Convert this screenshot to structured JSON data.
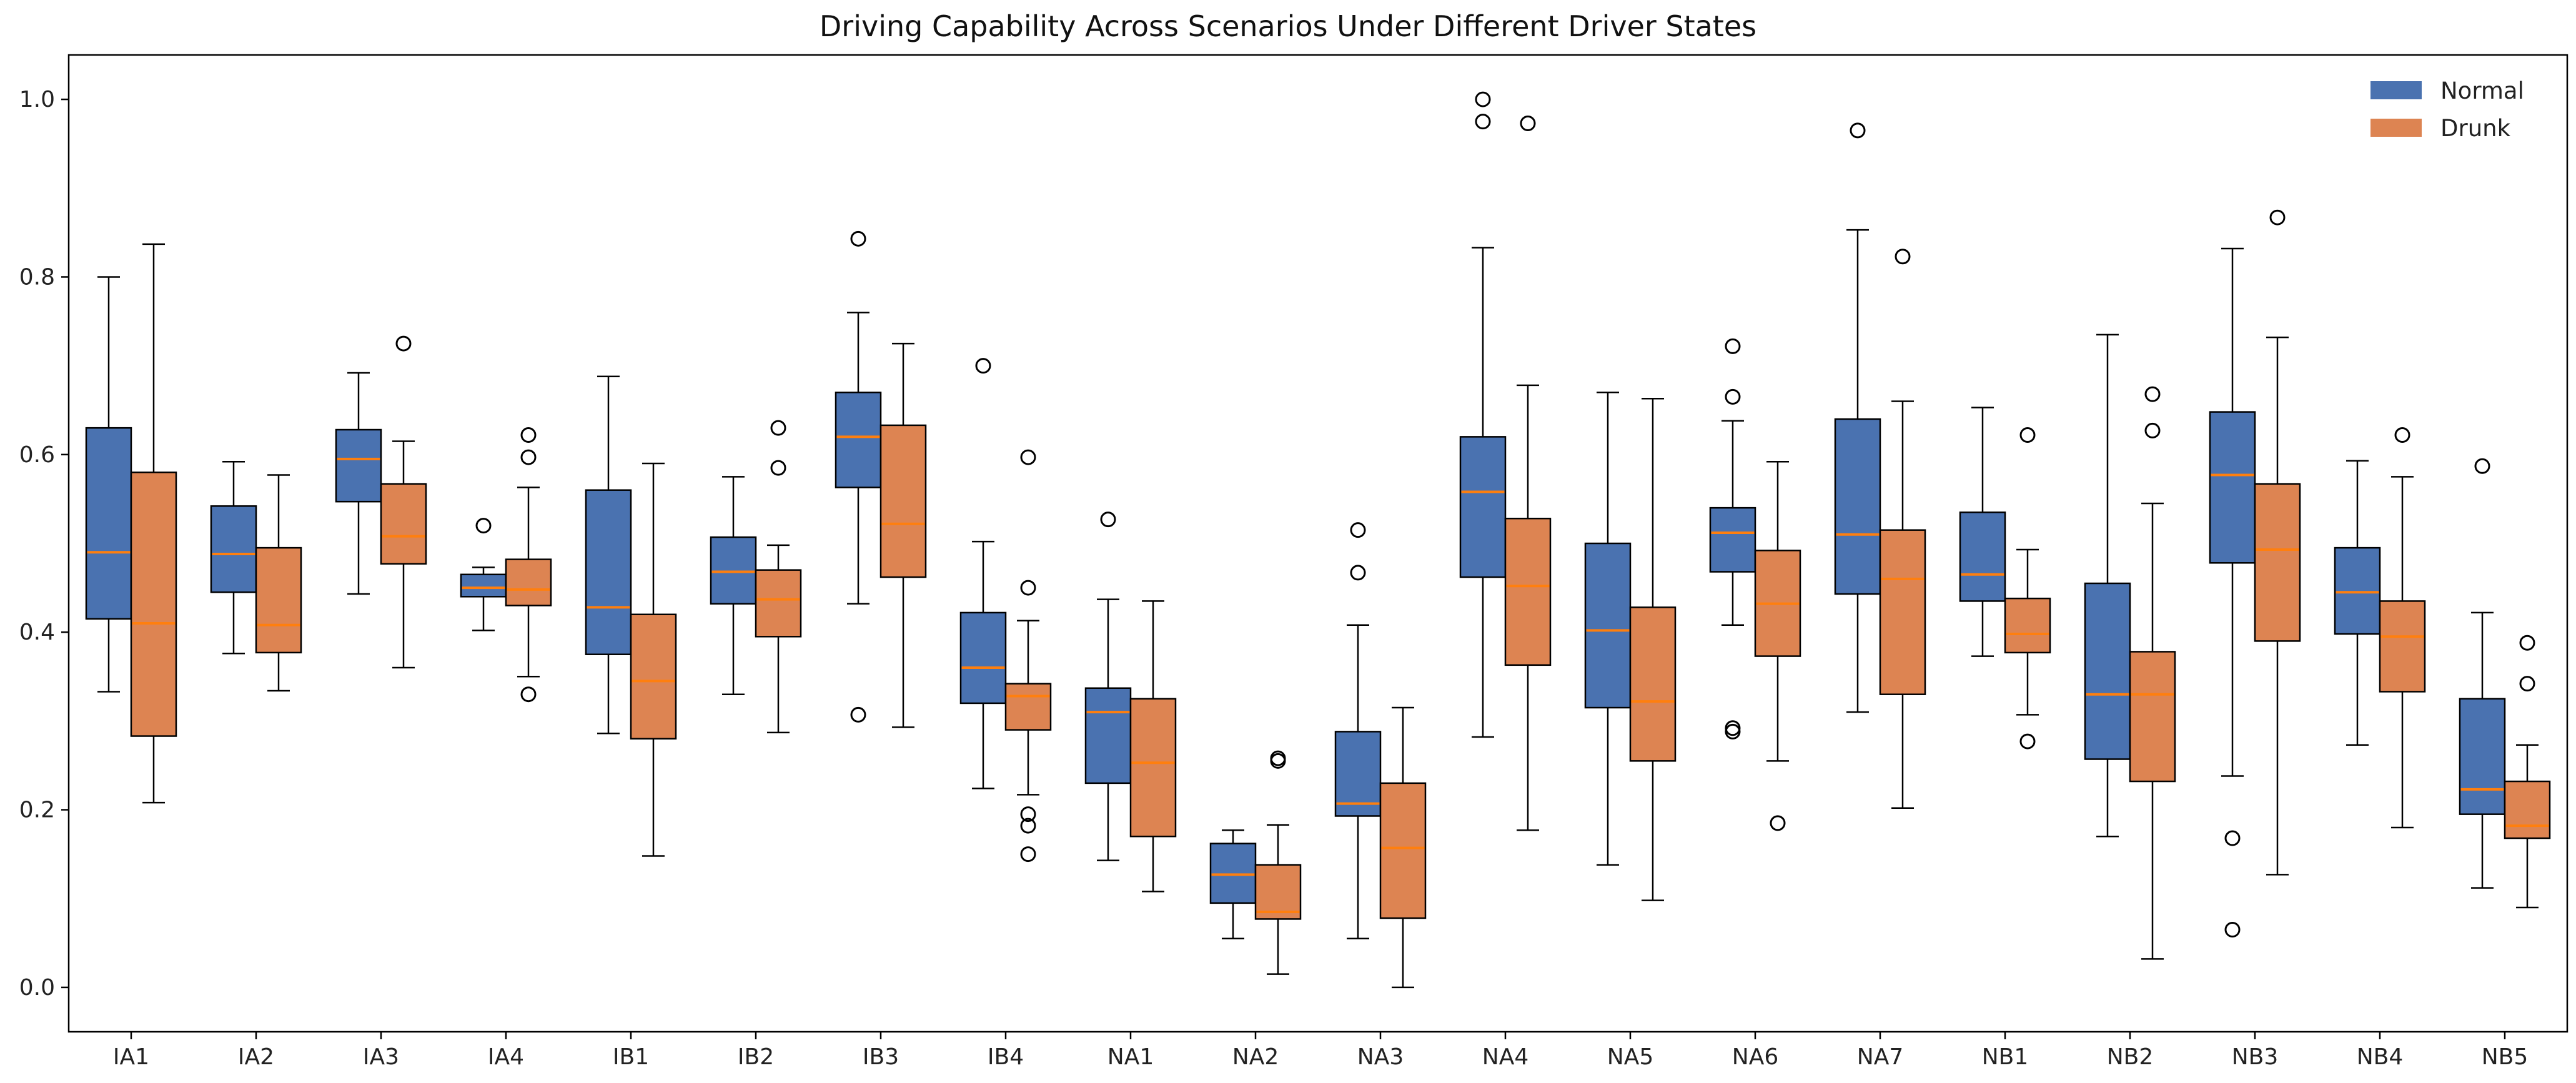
{
  "chart_data": {
    "type": "boxplot",
    "title": "Driving Capability Across Scenarios Under Different Driver States",
    "xlabel": "",
    "ylabel": "",
    "ylim": [
      -0.05,
      1.05
    ],
    "yticks": [
      0.0,
      0.2,
      0.4,
      0.6,
      0.8,
      1.0
    ],
    "ytick_labels": [
      "0.0",
      "0.2",
      "0.4",
      "0.6",
      "0.8",
      "1.0"
    ],
    "grid": false,
    "legend_position": "top-right",
    "categories": [
      "IA1",
      "IA2",
      "IA3",
      "IA4",
      "IB1",
      "IB2",
      "IB3",
      "IB4",
      "NA1",
      "NA2",
      "NA3",
      "NA4",
      "NA5",
      "NA6",
      "NA7",
      "NB1",
      "NB2",
      "NB3",
      "NB4",
      "NB5"
    ],
    "series": [
      {
        "name": "Normal",
        "color": "#4a72b0",
        "boxes": [
          {
            "whislo": 0.333,
            "q1": 0.415,
            "med": 0.49,
            "q3": 0.63,
            "whishi": 0.8,
            "fliers": []
          },
          {
            "whislo": 0.376,
            "q1": 0.445,
            "med": 0.488,
            "q3": 0.542,
            "whishi": 0.592,
            "fliers": []
          },
          {
            "whislo": 0.443,
            "q1": 0.547,
            "med": 0.595,
            "q3": 0.628,
            "whishi": 0.692,
            "fliers": []
          },
          {
            "whislo": 0.402,
            "q1": 0.44,
            "med": 0.45,
            "q3": 0.465,
            "whishi": 0.473,
            "fliers": [
              0.52
            ]
          },
          {
            "whislo": 0.286,
            "q1": 0.375,
            "med": 0.428,
            "q3": 0.56,
            "whishi": 0.688,
            "fliers": []
          },
          {
            "whislo": 0.33,
            "q1": 0.432,
            "med": 0.468,
            "q3": 0.507,
            "whishi": 0.575,
            "fliers": []
          },
          {
            "whislo": 0.432,
            "q1": 0.563,
            "med": 0.62,
            "q3": 0.67,
            "whishi": 0.76,
            "fliers": [
              0.843,
              0.307
            ]
          },
          {
            "whislo": 0.224,
            "q1": 0.32,
            "med": 0.36,
            "q3": 0.422,
            "whishi": 0.502,
            "fliers": [
              0.7
            ]
          },
          {
            "whislo": 0.143,
            "q1": 0.23,
            "med": 0.31,
            "q3": 0.337,
            "whishi": 0.437,
            "fliers": [
              0.527
            ]
          },
          {
            "whislo": 0.055,
            "q1": 0.095,
            "med": 0.127,
            "q3": 0.162,
            "whishi": 0.177,
            "fliers": []
          },
          {
            "whislo": 0.055,
            "q1": 0.193,
            "med": 0.207,
            "q3": 0.288,
            "whishi": 0.408,
            "fliers": [
              0.515,
              0.467
            ]
          },
          {
            "whislo": 0.282,
            "q1": 0.462,
            "med": 0.558,
            "q3": 0.62,
            "whishi": 0.833,
            "fliers": [
              1.0,
              0.975
            ]
          },
          {
            "whislo": 0.138,
            "q1": 0.315,
            "med": 0.402,
            "q3": 0.5,
            "whishi": 0.67,
            "fliers": []
          },
          {
            "whislo": 0.408,
            "q1": 0.468,
            "med": 0.512,
            "q3": 0.54,
            "whishi": 0.638,
            "fliers": [
              0.722,
              0.665,
              0.292,
              0.288
            ]
          },
          {
            "whislo": 0.31,
            "q1": 0.443,
            "med": 0.51,
            "q3": 0.64,
            "whishi": 0.853,
            "fliers": [
              0.965
            ]
          },
          {
            "whislo": 0.373,
            "q1": 0.435,
            "med": 0.465,
            "q3": 0.535,
            "whishi": 0.653,
            "fliers": []
          },
          {
            "whislo": 0.17,
            "q1": 0.257,
            "med": 0.33,
            "q3": 0.455,
            "whishi": 0.735,
            "fliers": []
          },
          {
            "whislo": 0.238,
            "q1": 0.478,
            "med": 0.577,
            "q3": 0.648,
            "whishi": 0.832,
            "fliers": [
              0.168,
              0.065
            ]
          },
          {
            "whislo": 0.273,
            "q1": 0.398,
            "med": 0.445,
            "q3": 0.495,
            "whishi": 0.593,
            "fliers": []
          },
          {
            "whislo": 0.112,
            "q1": 0.195,
            "med": 0.223,
            "q3": 0.325,
            "whishi": 0.422,
            "fliers": [
              0.587
            ]
          }
        ]
      },
      {
        "name": "Drunk",
        "color": "#dd8452",
        "boxes": [
          {
            "whislo": 0.208,
            "q1": 0.283,
            "med": 0.41,
            "q3": 0.58,
            "whishi": 0.837,
            "fliers": []
          },
          {
            "whislo": 0.334,
            "q1": 0.377,
            "med": 0.408,
            "q3": 0.495,
            "whishi": 0.577,
            "fliers": []
          },
          {
            "whislo": 0.36,
            "q1": 0.477,
            "med": 0.508,
            "q3": 0.567,
            "whishi": 0.615,
            "fliers": [
              0.725
            ]
          },
          {
            "whislo": 0.35,
            "q1": 0.43,
            "med": 0.448,
            "q3": 0.482,
            "whishi": 0.563,
            "fliers": [
              0.622,
              0.597,
              0.33
            ]
          },
          {
            "whislo": 0.148,
            "q1": 0.28,
            "med": 0.345,
            "q3": 0.42,
            "whishi": 0.59,
            "fliers": []
          },
          {
            "whislo": 0.287,
            "q1": 0.395,
            "med": 0.437,
            "q3": 0.47,
            "whishi": 0.498,
            "fliers": [
              0.63,
              0.585
            ]
          },
          {
            "whislo": 0.293,
            "q1": 0.462,
            "med": 0.522,
            "q3": 0.633,
            "whishi": 0.725,
            "fliers": []
          },
          {
            "whislo": 0.217,
            "q1": 0.29,
            "med": 0.328,
            "q3": 0.342,
            "whishi": 0.413,
            "fliers": [
              0.597,
              0.45,
              0.195,
              0.182,
              0.15
            ]
          },
          {
            "whislo": 0.108,
            "q1": 0.17,
            "med": 0.253,
            "q3": 0.325,
            "whishi": 0.435,
            "fliers": []
          },
          {
            "whislo": 0.015,
            "q1": 0.077,
            "med": 0.085,
            "q3": 0.138,
            "whishi": 0.183,
            "fliers": [
              0.258,
              0.255
            ]
          },
          {
            "whislo": 0.0,
            "q1": 0.078,
            "med": 0.157,
            "q3": 0.23,
            "whishi": 0.315,
            "fliers": []
          },
          {
            "whislo": 0.177,
            "q1": 0.363,
            "med": 0.452,
            "q3": 0.528,
            "whishi": 0.678,
            "fliers": [
              0.973
            ]
          },
          {
            "whislo": 0.098,
            "q1": 0.255,
            "med": 0.322,
            "q3": 0.428,
            "whishi": 0.663,
            "fliers": []
          },
          {
            "whislo": 0.255,
            "q1": 0.373,
            "med": 0.432,
            "q3": 0.492,
            "whishi": 0.592,
            "fliers": [
              0.185
            ]
          },
          {
            "whislo": 0.202,
            "q1": 0.33,
            "med": 0.46,
            "q3": 0.515,
            "whishi": 0.66,
            "fliers": [
              0.823
            ]
          },
          {
            "whislo": 0.307,
            "q1": 0.377,
            "med": 0.398,
            "q3": 0.438,
            "whishi": 0.493,
            "fliers": [
              0.622,
              0.277
            ]
          },
          {
            "whislo": 0.032,
            "q1": 0.232,
            "med": 0.33,
            "q3": 0.378,
            "whishi": 0.545,
            "fliers": [
              0.668,
              0.627
            ]
          },
          {
            "whislo": 0.127,
            "q1": 0.39,
            "med": 0.493,
            "q3": 0.567,
            "whishi": 0.732,
            "fliers": [
              0.867
            ]
          },
          {
            "whislo": 0.18,
            "q1": 0.333,
            "med": 0.395,
            "q3": 0.435,
            "whishi": 0.575,
            "fliers": [
              0.622
            ]
          },
          {
            "whislo": 0.09,
            "q1": 0.168,
            "med": 0.182,
            "q3": 0.232,
            "whishi": 0.273,
            "fliers": [
              0.388,
              0.342
            ]
          }
        ]
      }
    ]
  }
}
